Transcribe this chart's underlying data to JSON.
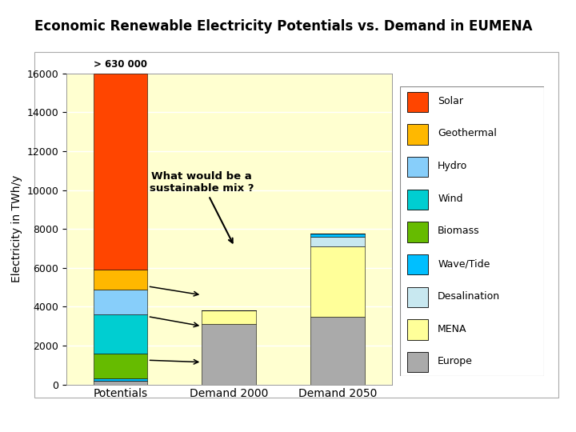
{
  "title": "Economic Renewable Electricity Potentials vs. Demand in EUMENA",
  "ylabel": "Electricity in TWh/y",
  "categories": [
    "Potentials",
    "Demand 2000",
    "Demand 2050"
  ],
  "ylim": [
    0,
    16000
  ],
  "yticks": [
    0,
    2000,
    4000,
    6000,
    8000,
    10000,
    12000,
    14000,
    16000
  ],
  "fig_bg": "#E8E8E8",
  "plot_bg": "#FFFFF0",
  "plot_area_bg": "#FFFFD0",
  "annotation_text": "> 630 000",
  "question_text": "What would be a\nsustainable mix ?",
  "legend_labels": [
    "Solar",
    "Geothermal",
    "Hydro",
    "Wind",
    "Biomass",
    "Wave/Tide",
    "Desalination",
    "MENA",
    "Europe"
  ],
  "legend_colors": [
    "#FF4500",
    "#FFB800",
    "#87CEFA",
    "#00CED1",
    "#66BB00",
    "#00BFFF",
    "#C8E8F0",
    "#FFFF99",
    "#AAAAAA"
  ],
  "layers": [
    "Europe",
    "MENA",
    "Desalination",
    "Wave/Tide",
    "Biomass",
    "Wind",
    "Hydro",
    "Geothermal",
    "Solar"
  ],
  "bars": {
    "Potentials": {
      "Europe": 200,
      "MENA": 0,
      "Desalination": 0,
      "Wave/Tide": 100,
      "Biomass": 1300,
      "Wind": 2000,
      "Hydro": 1300,
      "Geothermal": 1000,
      "Solar": 10100
    },
    "Demand 2000": {
      "Europe": 3100,
      "MENA": 700,
      "Desalination": 0,
      "Wave/Tide": 0,
      "Biomass": 0,
      "Wind": 0,
      "Hydro": 0,
      "Geothermal": 0,
      "Solar": 0
    },
    "Demand 2050": {
      "Europe": 3500,
      "MENA": 3600,
      "Desalination": 480,
      "Wave/Tide": 170,
      "Biomass": 0,
      "Wind": 0,
      "Hydro": 0,
      "Geothermal": 0,
      "Solar": 0
    }
  }
}
